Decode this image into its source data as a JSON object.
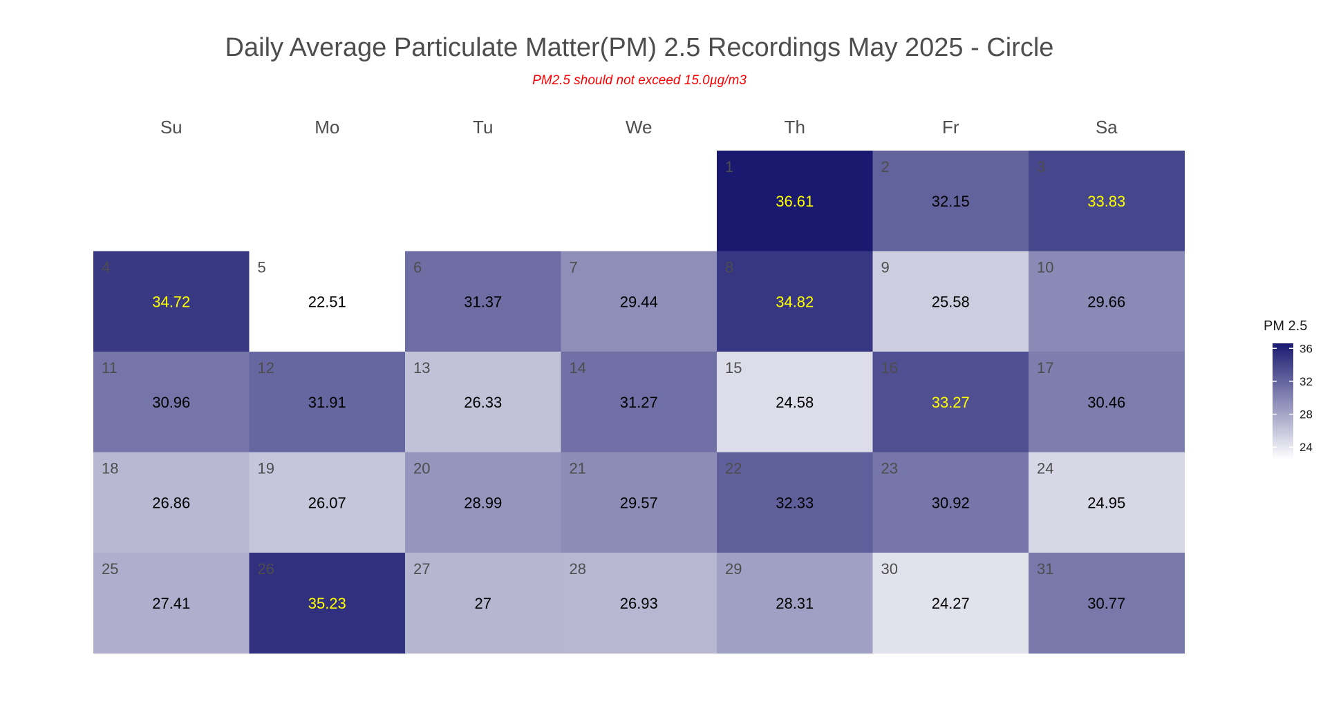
{
  "title": "Daily Average Particulate Matter(PM) 2.5 Recordings May 2025 -  Circle",
  "subtitle": "PM2.5 should not exceed 15.0µg/m3",
  "colors": {
    "low": "#ffffff",
    "high": "#191970",
    "highlight_text": "#ffff00",
    "normal_text": "#000000",
    "daynum_text": "#4d4d4d",
    "subtitle": "#ff0000"
  },
  "chart_data": {
    "type": "heatmap",
    "title": "Daily Average Particulate Matter(PM) 2.5 Recordings May 2025 -  Circle",
    "subtitle": "PM2.5 should not exceed 15.0µg/m3",
    "weekdays": [
      "Su",
      "Mo",
      "Tu",
      "We",
      "Th",
      "Fr",
      "Sa"
    ],
    "first_weekday_index": 4,
    "days": [
      1,
      2,
      3,
      4,
      5,
      6,
      7,
      8,
      9,
      10,
      11,
      12,
      13,
      14,
      15,
      16,
      17,
      18,
      19,
      20,
      21,
      22,
      23,
      24,
      25,
      26,
      27,
      28,
      29,
      30,
      31
    ],
    "values": [
      "36.61",
      "32.15",
      "33.83",
      "34.72",
      "22.51",
      "31.37",
      "29.44",
      "34.82",
      "25.58",
      "29.66",
      "30.96",
      "31.91",
      "26.33",
      "31.27",
      "24.58",
      "33.27",
      "30.46",
      "26.86",
      "26.07",
      "28.99",
      "29.57",
      "32.33",
      "30.92",
      "24.95",
      "27.41",
      "35.23",
      "27",
      "26.93",
      "28.31",
      "24.27",
      "30.77"
    ],
    "legend": {
      "title": "PM 2.5",
      "ticks": [
        "36",
        "32",
        "28",
        "24"
      ],
      "range": [
        22.51,
        36.61
      ]
    }
  }
}
